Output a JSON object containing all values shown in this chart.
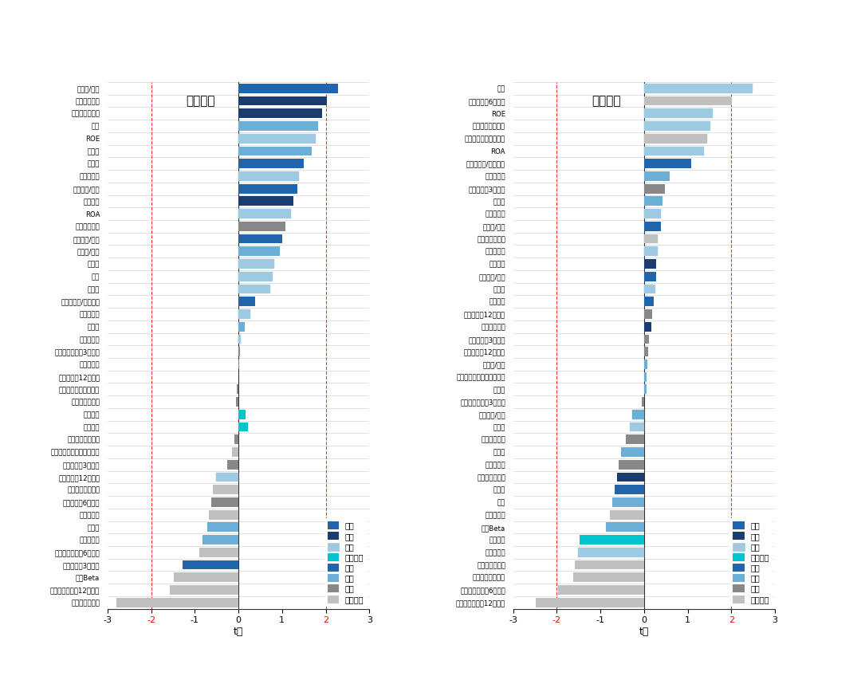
{
  "left_title": "市场上涨",
  "right_title": "市场下跌",
  "xlabel": "t值",
  "xlim": [
    -3,
    3
  ],
  "xticks": [
    -3,
    -2,
    -1,
    0,
    1,
    2,
    3
  ],
  "vlines": [
    -2,
    2
  ],
  "categories_left": [
    "净利润/市值",
    "总资产增长率",
    "固定资产增长率",
    "市值",
    "ROE",
    "总资产",
    "股息率",
    "资本周转率",
    "营业收入/市值",
    "股份发行",
    "ROA",
    "基金成立年数",
    "账面价值/市值",
    "总资产/市值",
    "成长性",
    "质量",
    "利润率",
    "自由现金流/账面价值",
    "营业利润率",
    "换手率",
    "资本密集度",
    "基金公司动量（3个月）",
    "基金净资产",
    "基金动量（12个月）",
    "基金公司旗下基金数量",
    "基金公司净资产",
    "经营杠杆",
    "应计项目",
    "基金公司成立年数",
    "与去年最高股价的相对水平",
    "基金动量（3个月）",
    "股票动量（12个月）",
    "销售、管理费用率",
    "基金动量（6个月）",
    "基金资金流",
    "波动率",
    "特质波动率",
    "基金公司动量（6个月）",
    "股票动量（3个月）",
    "市场Beta",
    "基金公司动量（12个月）",
    "基金公司资金流"
  ],
  "values_left": [
    2.28,
    2.02,
    1.92,
    1.82,
    1.78,
    1.68,
    1.5,
    1.38,
    1.35,
    1.25,
    1.2,
    1.08,
    1.0,
    0.95,
    0.82,
    0.78,
    0.72,
    0.38,
    0.28,
    0.14,
    0.06,
    0.03,
    0.01,
    -0.01,
    -0.04,
    -0.06,
    0.16,
    0.22,
    -0.09,
    -0.14,
    -0.26,
    -0.52,
    -0.58,
    -0.63,
    -0.68,
    -0.72,
    -0.82,
    -0.9,
    -1.28,
    -1.48,
    -1.58,
    -2.8
  ],
  "colors_left": [
    "#2166AC",
    "#1A3C6E",
    "#1A3C6E",
    "#6BAED6",
    "#9ECAE1",
    "#6BAED6",
    "#2166AC",
    "#9ECAE1",
    "#2166AC",
    "#1A3C6E",
    "#9ECAE1",
    "#888888",
    "#2166AC",
    "#6BAED6",
    "#9ECAE1",
    "#9ECAE1",
    "#9ECAE1",
    "#2166AC",
    "#9ECAE1",
    "#6BAED6",
    "#9ECAE1",
    "#888888",
    "#888888",
    "#888888",
    "#888888",
    "#888888",
    "#00C5CD",
    "#00C5CD",
    "#888888",
    "#C0C0C0",
    "#888888",
    "#9ECAE1",
    "#C0C0C0",
    "#888888",
    "#C0C0C0",
    "#6BAED6",
    "#6BAED6",
    "#C0C0C0",
    "#2166AC",
    "#C0C0C0",
    "#C0C0C0",
    "#C0C0C0"
  ],
  "hatches_left": [
    "",
    "",
    "",
    "",
    "////",
    "",
    "",
    "////",
    "",
    "",
    "////",
    "",
    "",
    "",
    "////",
    "////",
    "////",
    "",
    "////",
    "",
    "////",
    "",
    "",
    "",
    "",
    "",
    "",
    "",
    "",
    "",
    "",
    "////",
    "",
    "",
    "",
    "",
    "",
    "",
    "",
    "",
    "",
    ""
  ],
  "categories_right": [
    "质量",
    "基金动量（6个月）",
    "ROE",
    "销售、管理费用率",
    "基金公司旗下基金数量",
    "ROA",
    "自由现金流/账面价值",
    "特质波动率",
    "基金动量（3个月）",
    "波动率",
    "资本周转率",
    "净利润/市值",
    "基金公司净资产",
    "营业利润率",
    "股份发行",
    "营业收入/市值",
    "利润率",
    "应计项目",
    "股票动量（12个月）",
    "总资产增长率",
    "股票动量（3个月）",
    "基金动量（12个月）",
    "总资产/市值",
    "与去年最高股价的相对水平",
    "总资产",
    "基金公司动量（3个月）",
    "账面价值/市值",
    "成长性",
    "基金成立年数",
    "换手率",
    "基金净资产",
    "固定资产增长率",
    "股息率",
    "市值",
    "基金资金流",
    "市场Beta",
    "经营杠杆",
    "资本密集度",
    "基金公司资金流",
    "基金公司成立年数",
    "基金公司动量（6个月）",
    "基金公司动量（12个月）"
  ],
  "values_right": [
    2.48,
    2.02,
    1.58,
    1.52,
    1.45,
    1.38,
    1.08,
    0.58,
    0.48,
    0.42,
    0.38,
    0.38,
    0.32,
    0.32,
    0.28,
    0.28,
    0.25,
    0.22,
    0.18,
    0.16,
    0.12,
    0.1,
    0.08,
    0.06,
    0.06,
    -0.06,
    -0.28,
    -0.32,
    -0.42,
    -0.52,
    -0.58,
    -0.62,
    -0.68,
    -0.72,
    -0.78,
    -0.88,
    -1.48,
    -1.52,
    -1.58,
    -1.62,
    -1.98,
    -2.48
  ],
  "colors_right": [
    "#9ECAE1",
    "#C0C0C0",
    "#9ECAE1",
    "#9ECAE1",
    "#C0C0C0",
    "#9ECAE1",
    "#2166AC",
    "#6BAED6",
    "#888888",
    "#6BAED6",
    "#9ECAE1",
    "#2166AC",
    "#C0C0C0",
    "#9ECAE1",
    "#1A3C6E",
    "#2166AC",
    "#9ECAE1",
    "#2166AC",
    "#888888",
    "#1A3C6E",
    "#888888",
    "#888888",
    "#6BAED6",
    "#6BAED6",
    "#6BAED6",
    "#888888",
    "#6BAED6",
    "#9ECAE1",
    "#888888",
    "#6BAED6",
    "#888888",
    "#1A3C6E",
    "#2166AC",
    "#6BAED6",
    "#C0C0C0",
    "#6BAED6",
    "#00C5CD",
    "#9ECAE1",
    "#C0C0C0",
    "#C0C0C0",
    "#C0C0C0",
    "#C0C0C0"
  ],
  "hatches_right": [
    "////",
    "",
    "////",
    "////",
    "////",
    "////",
    "",
    "",
    "",
    "",
    "////",
    "",
    "////",
    "////",
    "",
    "",
    "////",
    "",
    "",
    "",
    "",
    "",
    "",
    "",
    "",
    "",
    "////",
    "////",
    "",
    "",
    "",
    "",
    "",
    "",
    "",
    "",
    "",
    "////",
    "",
    "",
    "",
    ""
  ],
  "legend_items": [
    {
      "label": "动量",
      "color": "#2166AC",
      "hatch": ""
    },
    {
      "label": "投资",
      "color": "#1A3C6E",
      "hatch": ""
    },
    {
      "label": "盈利",
      "color": "#9ECAE1",
      "hatch": "////"
    },
    {
      "label": "无形资产",
      "color": "#00C5CD",
      "hatch": ""
    },
    {
      "label": "估值",
      "color": "#2166AC",
      "hatch": ""
    },
    {
      "label": "交易",
      "color": "#6BAED6",
      "hatch": ""
    },
    {
      "label": "基金",
      "color": "#888888",
      "hatch": ""
    },
    {
      "label": "基金公司",
      "color": "#C0C0C0",
      "hatch": ""
    }
  ]
}
